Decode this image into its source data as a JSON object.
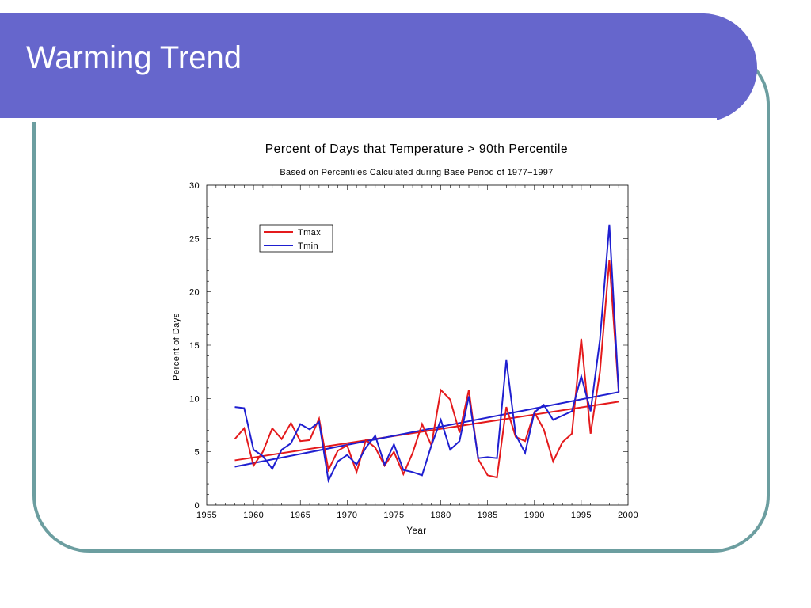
{
  "slide": {
    "title": "Warming Trend"
  },
  "colors": {
    "header": "#6666cc",
    "border": "#6c9ea0",
    "tmax": "#e41a1c",
    "tmin": "#1f1fd0"
  },
  "chart_data": {
    "type": "line",
    "title": "Percent of Days that Temperature > 90th Percentile",
    "subtitle": "Based on Percentiles Calculated during Base Period of 1977−1997",
    "xlabel": "Year",
    "ylabel": "Percent of Days",
    "xlim": [
      1955,
      2000
    ],
    "ylim": [
      0,
      30
    ],
    "xticks": [
      1955,
      1960,
      1965,
      1970,
      1975,
      1980,
      1985,
      1990,
      1995,
      2000
    ],
    "yticks": [
      0,
      5,
      10,
      15,
      20,
      25,
      30
    ],
    "legend_position": "top-left",
    "series": [
      {
        "name": "Tmax",
        "color": "#e41a1c",
        "x": [
          1958,
          1959,
          1960,
          1961,
          1962,
          1963,
          1964,
          1965,
          1966,
          1967,
          1968,
          1969,
          1970,
          1971,
          1972,
          1973,
          1974,
          1975,
          1976,
          1977,
          1978,
          1979,
          1980,
          1981,
          1982,
          1983,
          1984,
          1985,
          1986,
          1987,
          1988,
          1989,
          1990,
          1991,
          1992,
          1993,
          1994,
          1995,
          1996,
          1997,
          1998,
          1999
        ],
        "values": [
          6.2,
          7.2,
          3.7,
          5.0,
          7.2,
          6.2,
          7.7,
          6.0,
          6.1,
          8.1,
          3.3,
          5.1,
          5.6,
          3.1,
          6.1,
          5.4,
          3.7,
          5.0,
          2.9,
          4.9,
          7.6,
          5.6,
          10.8,
          9.9,
          6.8,
          10.8,
          4.3,
          2.8,
          2.6,
          9.2,
          6.4,
          6.0,
          8.7,
          7.1,
          4.1,
          5.9,
          6.7,
          15.6,
          6.7,
          12.5,
          23.0,
          10.6
        ]
      },
      {
        "name": "Tmin",
        "color": "#1f1fd0",
        "x": [
          1958,
          1959,
          1960,
          1961,
          1962,
          1963,
          1964,
          1965,
          1966,
          1967,
          1968,
          1969,
          1970,
          1971,
          1972,
          1973,
          1974,
          1975,
          1976,
          1977,
          1978,
          1979,
          1980,
          1981,
          1982,
          1983,
          1984,
          1985,
          1986,
          1987,
          1988,
          1989,
          1990,
          1991,
          1992,
          1993,
          1994,
          1995,
          1996,
          1997,
          1998,
          1999
        ],
        "values": [
          9.2,
          9.1,
          5.2,
          4.6,
          3.4,
          5.2,
          5.8,
          7.6,
          7.1,
          7.8,
          2.3,
          4.1,
          4.7,
          3.8,
          5.4,
          6.5,
          3.8,
          5.7,
          3.3,
          3.1,
          2.8,
          5.6,
          8.0,
          5.2,
          6.0,
          10.2,
          4.4,
          4.5,
          4.4,
          13.6,
          6.6,
          4.9,
          8.7,
          9.4,
          8.0,
          8.4,
          8.8,
          12.1,
          8.8,
          15.5,
          26.3,
          10.6
        ]
      }
    ],
    "trendlines": [
      {
        "name": "Tmax trend",
        "color": "#e41a1c",
        "x": [
          1958,
          1999
        ],
        "values": [
          4.2,
          9.7
        ]
      },
      {
        "name": "Tmin trend",
        "color": "#1f1fd0",
        "x": [
          1958,
          1999
        ],
        "values": [
          3.6,
          10.6
        ]
      }
    ]
  }
}
